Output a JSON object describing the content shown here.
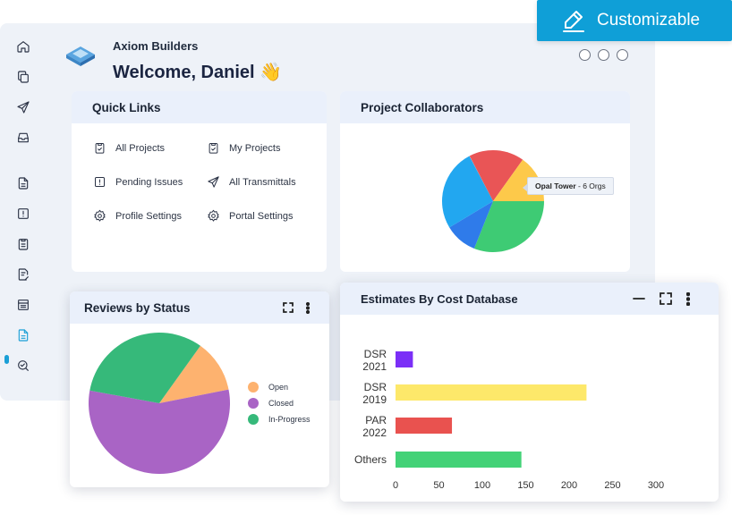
{
  "company": "Axiom Builders",
  "welcome": "Welcome, Daniel",
  "welcome_emoji": "👋",
  "customizable_label": "Customizable",
  "quick_links": {
    "title": "Quick Links",
    "items": [
      {
        "label": "All Projects",
        "icon": "clipboard-check-icon"
      },
      {
        "label": "My Projects",
        "icon": "clipboard-check-icon"
      },
      {
        "label": "Pending Issues",
        "icon": "alert-square-icon"
      },
      {
        "label": "All Transmittals",
        "icon": "send-icon"
      },
      {
        "label": "Profile Settings",
        "icon": "gear-icon"
      },
      {
        "label": "Portal Settings",
        "icon": "gear-icon"
      }
    ]
  },
  "collaborators": {
    "title": "Project Collaborators",
    "tooltip_name": "Opal Tower",
    "tooltip_detail": " - 6 Orgs",
    "colors": [
      "#e95556",
      "#fdc94a",
      "#3ecb74",
      "#2f7bea",
      "#22a7f0"
    ]
  },
  "reviews": {
    "title": "Reviews by Status",
    "legend": [
      {
        "label": "Open",
        "color": "#fdb26f"
      },
      {
        "label": "Closed",
        "color": "#a964c5"
      },
      {
        "label": "In-Progress",
        "color": "#36b97a"
      }
    ]
  },
  "estimates": {
    "title": "Estimates By Cost Database"
  },
  "chart_data": [
    {
      "type": "pie",
      "title": "Reviews by Status",
      "labels": [
        "Open",
        "Closed",
        "In-Progress"
      ],
      "values": [
        12,
        56,
        32
      ],
      "colors": [
        "#fdb26f",
        "#a964c5",
        "#36b97a"
      ],
      "legend": "right"
    },
    {
      "type": "bar",
      "orientation": "horizontal",
      "title": "Estimates By Cost Database",
      "categories": [
        "DSR 2021",
        "DSR 2019",
        "PAR 2022",
        "Others"
      ],
      "values": [
        20,
        220,
        65,
        145
      ],
      "colors": [
        "#7b2ff7",
        "#fde86a",
        "#e9524f",
        "#43d277"
      ],
      "xlim": [
        0,
        300
      ],
      "xticks": [
        0,
        50,
        100,
        150,
        200,
        250,
        300
      ],
      "grid": false
    }
  ],
  "sidebar_icons": [
    "home-icon",
    "copy-icon",
    "send-icon",
    "inbox-icon",
    "document-icon",
    "alert-square-icon",
    "clipboard-list-icon",
    "document-edit-icon",
    "archive-icon",
    "estimate-icon",
    "search-check-icon"
  ]
}
